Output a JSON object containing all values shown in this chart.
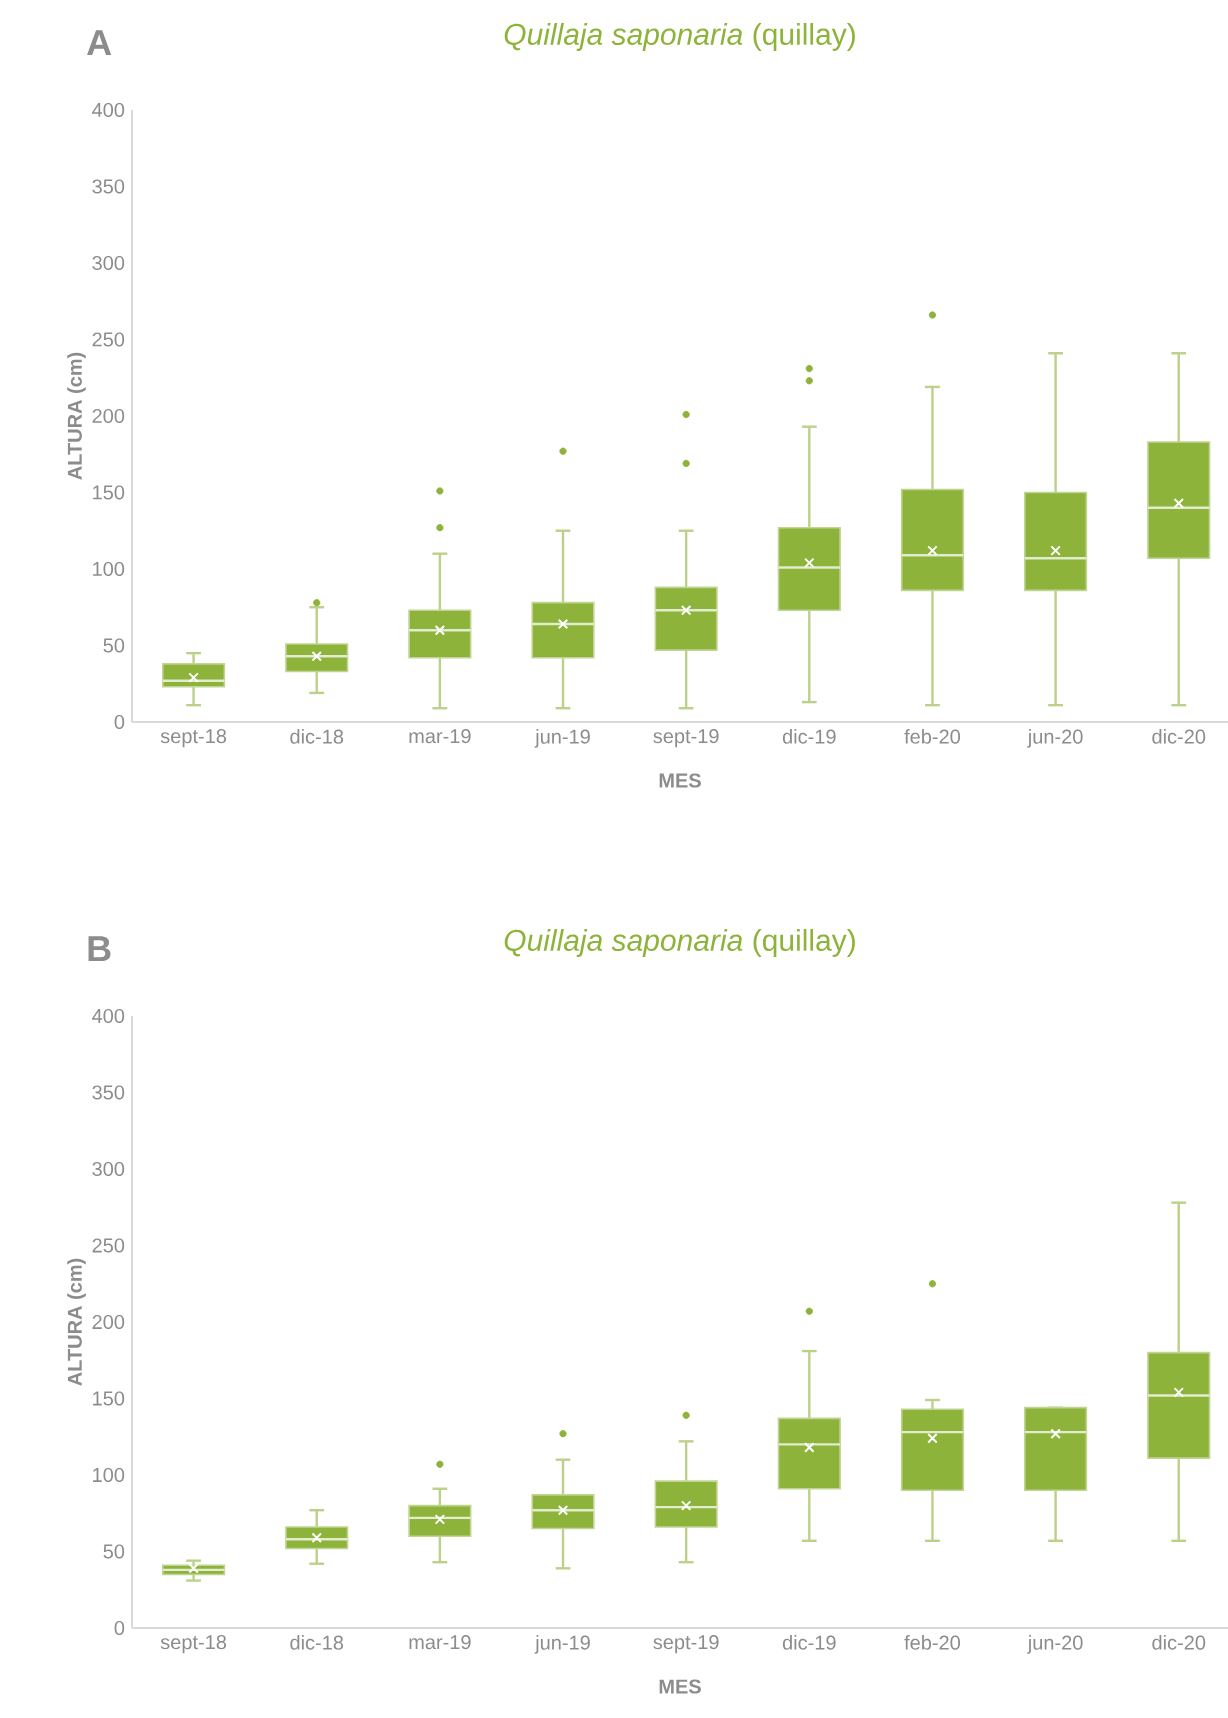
{
  "chart_data": [
    {
      "type": "box",
      "title": "*Quillaja saponaria* (quillay)",
      "annotations": [
        "A"
      ],
      "xlabel": "MES",
      "ylabel": "ALTURA (cm)",
      "color": "#8db33a",
      "categories": [
        "sept-18",
        "dic-18",
        "mar-19",
        "jun-19",
        "sept-19",
        "dic-19",
        "feb-20",
        "jun-20",
        "dic-20"
      ],
      "ylim": [
        0,
        400
      ],
      "yticks": [
        0,
        50,
        100,
        150,
        200,
        250,
        300,
        350,
        400
      ],
      "boxes": [
        {
          "low": 11,
          "q1": 23,
          "median": 27,
          "q3": 38,
          "high": 45,
          "mean": 29
        },
        {
          "low": 19,
          "q1": 33,
          "median": 43,
          "q3": 51,
          "high": 75,
          "mean": 43,
          "outliers": [
            78
          ]
        },
        {
          "low": 9,
          "q1": 42,
          "median": 60,
          "q3": 73,
          "high": 110,
          "mean": 60,
          "outliers": [
            127,
            151
          ]
        },
        {
          "low": 9,
          "q1": 42,
          "median": 64,
          "q3": 78,
          "high": 125,
          "mean": 64,
          "outliers": [
            177
          ]
        },
        {
          "low": 9,
          "q1": 47,
          "median": 73,
          "q3": 88,
          "high": 125,
          "mean": 73,
          "outliers": [
            169,
            201
          ]
        },
        {
          "low": 13,
          "q1": 73,
          "median": 101,
          "q3": 127,
          "high": 193,
          "mean": 104,
          "outliers": [
            223,
            231
          ]
        },
        {
          "low": 11,
          "q1": 86,
          "median": 109,
          "q3": 152,
          "high": 219,
          "mean": 112,
          "outliers": [
            266
          ]
        },
        {
          "low": 11,
          "q1": 86,
          "median": 107,
          "q3": 150,
          "high": 241,
          "mean": 112
        },
        {
          "low": 11,
          "q1": 107,
          "median": 140,
          "q3": 183,
          "high": 241,
          "mean": 143
        }
      ]
    },
    {
      "type": "box",
      "title": "*Quillaja saponaria* (quillay)",
      "annotations": [
        "B"
      ],
      "xlabel": "MES",
      "ylabel": "ALTURA (cm)",
      "color": "#8db33a",
      "categories": [
        "sept-18",
        "dic-18",
        "mar-19",
        "jun-19",
        "sept-19",
        "dic-19",
        "feb-20",
        "jun-20",
        "dic-20"
      ],
      "ylim": [
        0,
        400
      ],
      "yticks": [
        0,
        50,
        100,
        150,
        200,
        250,
        300,
        350,
        400
      ],
      "boxes": [
        {
          "low": 31,
          "q1": 35,
          "median": 38,
          "q3": 41,
          "high": 44,
          "mean": 39
        },
        {
          "low": 42,
          "q1": 52,
          "median": 58,
          "q3": 66,
          "high": 77,
          "mean": 59
        },
        {
          "low": 43,
          "q1": 60,
          "median": 72,
          "q3": 80,
          "high": 91,
          "mean": 71,
          "outliers": [
            107
          ]
        },
        {
          "low": 39,
          "q1": 65,
          "median": 77,
          "q3": 87,
          "high": 110,
          "mean": 77,
          "outliers": [
            127
          ]
        },
        {
          "low": 43,
          "q1": 66,
          "median": 79,
          "q3": 96,
          "high": 122,
          "mean": 80,
          "outliers": [
            139
          ]
        },
        {
          "low": 57,
          "q1": 91,
          "median": 120,
          "q3": 137,
          "high": 181,
          "mean": 118,
          "outliers": [
            207
          ]
        },
        {
          "low": 57,
          "q1": 90,
          "median": 128,
          "q3": 143,
          "high": 149,
          "mean": 124,
          "outliers": [
            225
          ]
        },
        {
          "low": 57,
          "q1": 90,
          "median": 128,
          "q3": 144,
          "high": 144,
          "mean": 127
        },
        {
          "low": 57,
          "q1": 111,
          "median": 152,
          "q3": 180,
          "high": 278,
          "mean": 154
        }
      ]
    }
  ]
}
